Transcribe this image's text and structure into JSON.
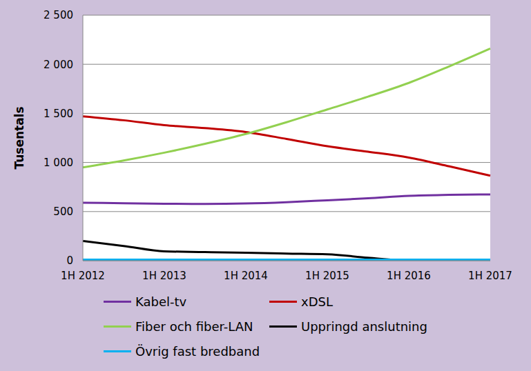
{
  "chart_data": {
    "type": "line",
    "y_label": "Tusentals",
    "categories": [
      "1H 2012",
      null,
      "1H 2013",
      null,
      "1H 2014",
      null,
      "1H 2015",
      null,
      "1H 2016",
      null,
      "1H 2017"
    ],
    "ylim": [
      0,
      2500
    ],
    "yticks": [
      0,
      500,
      {
        "value": 1000,
        "label": "1 000"
      },
      {
        "value": 1500,
        "label": "1 500"
      },
      {
        "value": 2000,
        "label": "2 000"
      },
      {
        "value": 2500,
        "label": "2 500"
      }
    ],
    "grid": true,
    "legend": "bottom",
    "series": [
      {
        "name": "Kabel-tv",
        "color": "#7030a0",
        "values": [
          590,
          585,
          580,
          578,
          582,
          595,
          615,
          635,
          660,
          670,
          675
        ]
      },
      {
        "name": "xDSL",
        "color": "#c00000",
        "values": [
          1470,
          1430,
          1380,
          1350,
          1310,
          1240,
          1165,
          1110,
          1050,
          960,
          865
        ]
      },
      {
        "name": "Fiber och fiber-LAN",
        "color": "#92d050",
        "values": [
          950,
          1020,
          1100,
          1190,
          1290,
          1410,
          1540,
          1670,
          1810,
          1980,
          2160
        ]
      },
      {
        "name": "Uppringd anslutning",
        "color": "#000000",
        "values": [
          200,
          150,
          95,
          88,
          80,
          72,
          65,
          30,
          2,
          1,
          0
        ]
      },
      {
        "name": "Övrig fast bredband",
        "color": "#00b0f0",
        "values": [
          10,
          10,
          10,
          10,
          10,
          10,
          10,
          10,
          10,
          10,
          10
        ]
      }
    ]
  }
}
